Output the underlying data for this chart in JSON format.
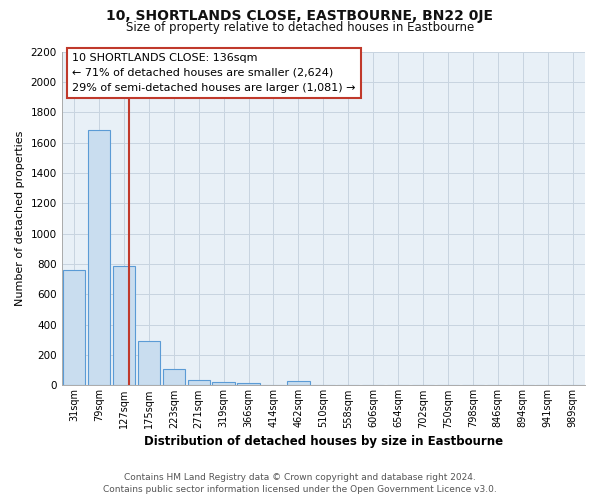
{
  "title": "10, SHORTLANDS CLOSE, EASTBOURNE, BN22 0JE",
  "subtitle": "Size of property relative to detached houses in Eastbourne",
  "xlabel": "Distribution of detached houses by size in Eastbourne",
  "ylabel": "Number of detached properties",
  "bin_labels": [
    "31sqm",
    "79sqm",
    "127sqm",
    "175sqm",
    "223sqm",
    "271sqm",
    "319sqm",
    "366sqm",
    "414sqm",
    "462sqm",
    "510sqm",
    "558sqm",
    "606sqm",
    "654sqm",
    "702sqm",
    "750sqm",
    "798sqm",
    "846sqm",
    "894sqm",
    "941sqm",
    "989sqm"
  ],
  "bar_heights": [
    760,
    1680,
    790,
    290,
    110,
    35,
    25,
    15,
    0,
    30,
    0,
    0,
    0,
    0,
    0,
    0,
    0,
    0,
    0,
    0,
    0
  ],
  "bar_color": "#c9ddef",
  "bar_edge_color": "#5b9bd5",
  "red_line_x": 2.19,
  "red_line_color": "#c0392b",
  "annotation_line1": "10 SHORTLANDS CLOSE: 136sqm",
  "annotation_line2": "← 71% of detached houses are smaller (2,624)",
  "annotation_line3": "29% of semi-detached houses are larger (1,081) →",
  "ylim_max": 2200,
  "yticks": [
    0,
    200,
    400,
    600,
    800,
    1000,
    1200,
    1400,
    1600,
    1800,
    2000,
    2200
  ],
  "grid_color": "#c8d4e0",
  "plot_bg_color": "#e8f0f7",
  "fig_bg_color": "#ffffff",
  "footer_line1": "Contains HM Land Registry data © Crown copyright and database right 2024.",
  "footer_line2": "Contains public sector information licensed under the Open Government Licence v3.0."
}
